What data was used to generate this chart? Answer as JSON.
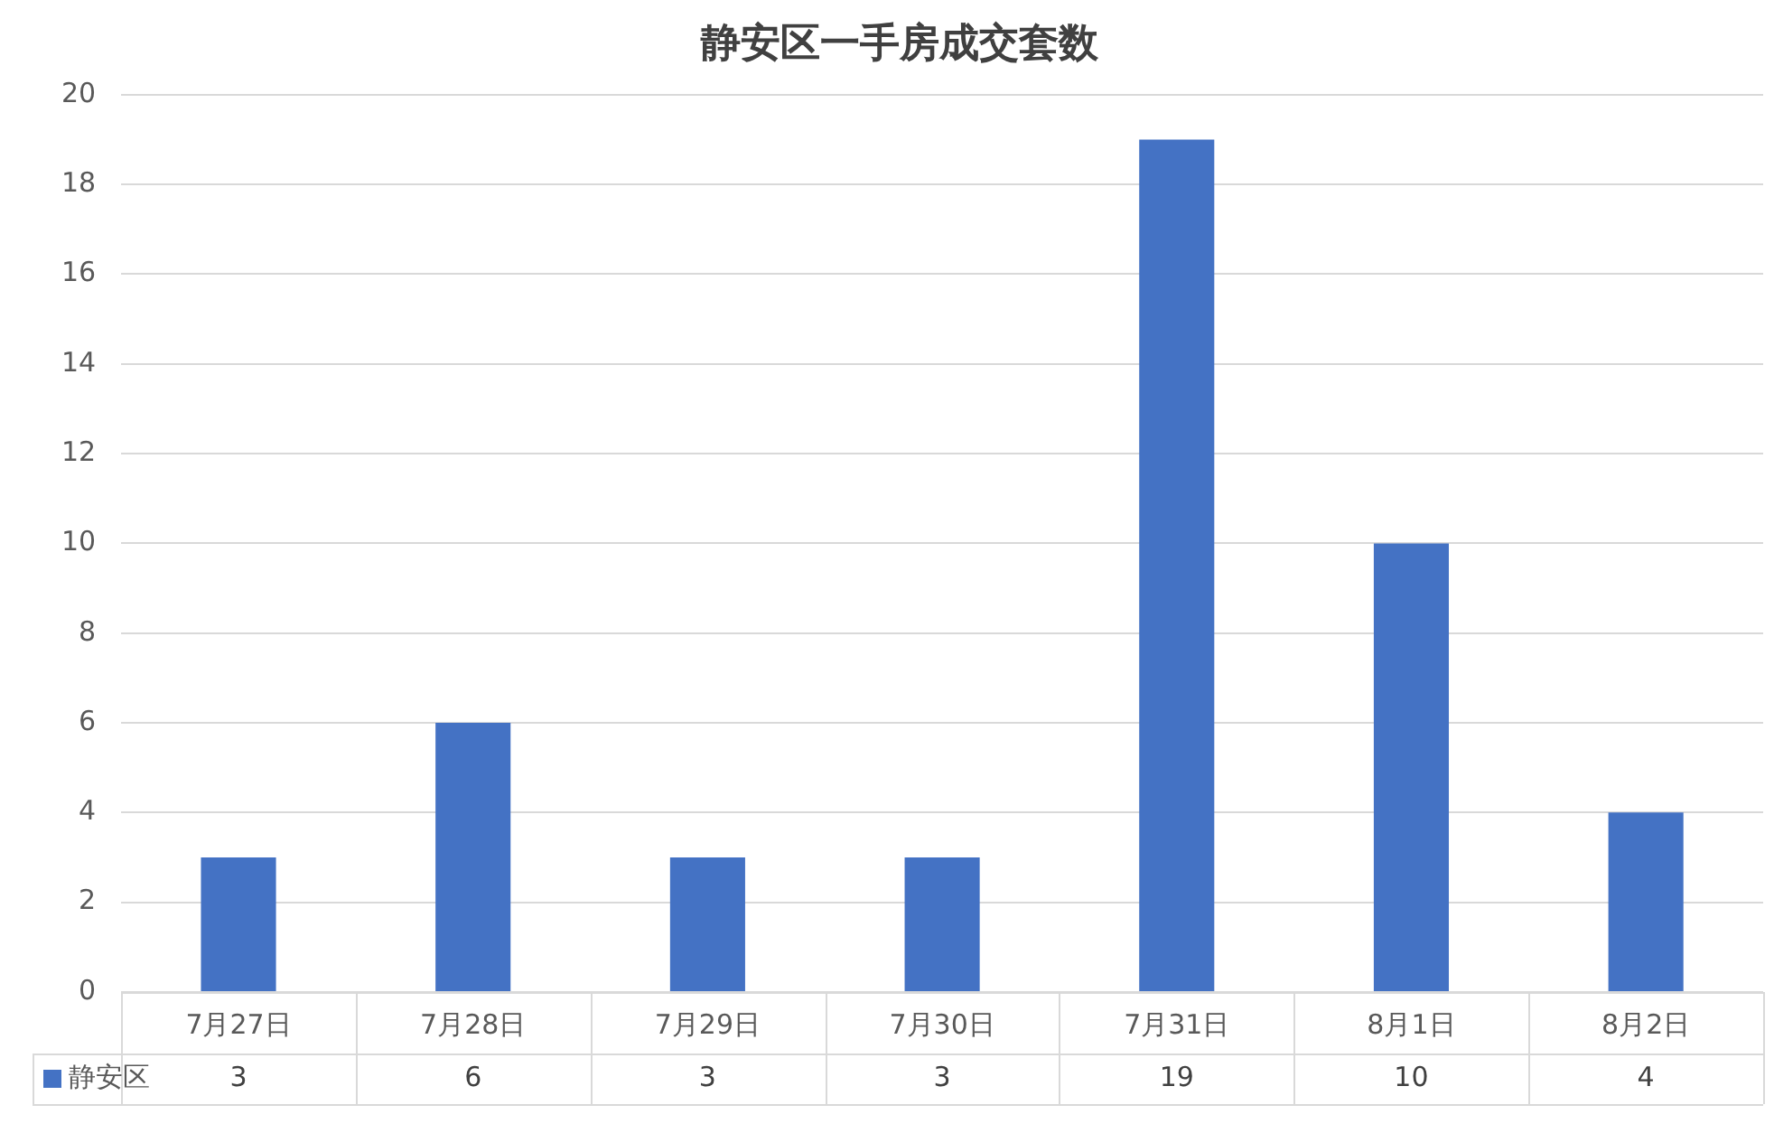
{
  "chart_data": {
    "type": "bar",
    "title": "静安区一手房成交套数",
    "categories": [
      "7月27日",
      "7月28日",
      "7月29日",
      "7月30日",
      "7月31日",
      "8月1日",
      "8月2日"
    ],
    "series": [
      {
        "name": "静安区",
        "color": "#4472c4",
        "values": [
          3,
          6,
          3,
          3,
          19,
          10,
          4
        ]
      }
    ],
    "ylim": [
      0,
      20
    ],
    "yticks": [
      0,
      2,
      4,
      6,
      8,
      10,
      12,
      14,
      16,
      18,
      20
    ],
    "grid": "y",
    "legend": "bottom",
    "data_labels": true
  }
}
